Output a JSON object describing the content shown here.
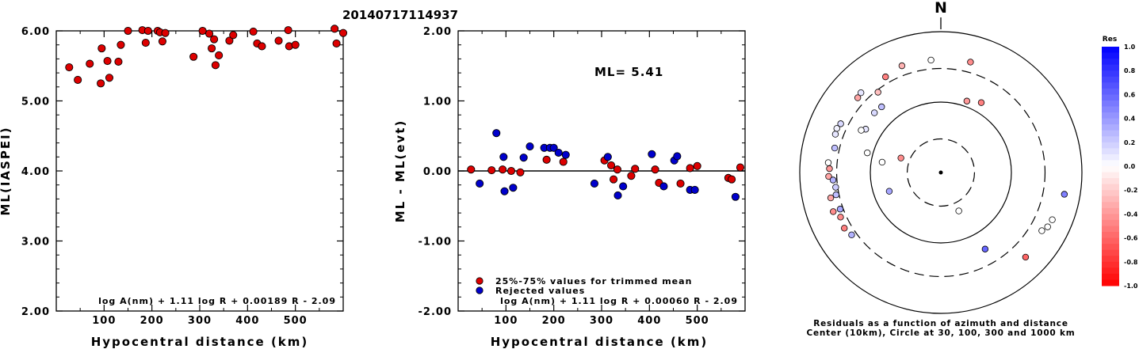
{
  "page_title": "20140717114937",
  "colors": {
    "accepted": "#dd0000",
    "rejected": "#0000cc"
  },
  "chart_data": [
    {
      "type": "scatter",
      "xlabel": "Hypocentral distance (km)",
      "ylabel": "ML(IASPEI)",
      "xlim": [
        0,
        600
      ],
      "ylim": [
        2.0,
        6.0
      ],
      "x_ticks": [
        "100",
        "200",
        "300",
        "400",
        "500"
      ],
      "y_ticks": [
        "2.00",
        "3.00",
        "4.00",
        "5.00",
        "6.00"
      ],
      "formula": "log A(nm) + 1.11 log R + 0.00189 R - 2.09",
      "series": [
        {
          "points": [
            [
              27,
              5.48
            ],
            [
              45,
              5.3
            ],
            [
              70,
              5.53
            ],
            [
              93,
              5.25
            ],
            [
              95,
              5.75
            ],
            [
              107,
              5.57
            ],
            [
              111,
              5.33
            ],
            [
              130,
              5.56
            ],
            [
              135,
              5.8
            ],
            [
              150,
              6.0
            ],
            [
              180,
              6.01
            ],
            [
              187,
              5.83
            ],
            [
              192,
              6.0
            ],
            [
              212,
              6.0
            ],
            [
              217,
              5.98
            ],
            [
              222,
              5.85
            ],
            [
              228,
              5.97
            ],
            [
              287,
              5.63
            ],
            [
              306,
              6.0
            ],
            [
              320,
              5.96
            ],
            [
              325,
              5.75
            ],
            [
              330,
              5.88
            ],
            [
              333,
              5.51
            ],
            [
              340,
              5.65
            ],
            [
              362,
              5.86
            ],
            [
              370,
              5.94
            ],
            [
              412,
              5.99
            ],
            [
              420,
              5.82
            ],
            [
              430,
              5.78
            ],
            [
              465,
              5.86
            ],
            [
              485,
              6.01
            ],
            [
              487,
              5.78
            ],
            [
              500,
              5.8
            ],
            [
              582,
              6.03
            ],
            [
              586,
              5.82
            ],
            [
              600,
              5.97
            ]
          ]
        }
      ]
    },
    {
      "type": "scatter",
      "xlabel": "Hypocentral distance (km)",
      "ylabel": "ML - ML(evt)",
      "xlim": [
        0,
        600
      ],
      "ylim": [
        -2.0,
        2.0
      ],
      "x_ticks": [
        "100",
        "200",
        "300",
        "400",
        "500"
      ],
      "y_ticks": [
        "-2.00",
        "-1.00",
        "0.00",
        "1.00",
        "2.00"
      ],
      "annotation": "ML= 5.41",
      "formula": "log A(nm) + 1.11 log R + 0.00060 R - 2.09",
      "zero_line": 0.0,
      "series": [
        {
          "name": "25%-75% values for trimmed mean",
          "color": "#dd0000",
          "points": [
            [
              27,
              0.02
            ],
            [
              70,
              0.01
            ],
            [
              93,
              0.02
            ],
            [
              111,
              0.0
            ],
            [
              130,
              -0.02
            ],
            [
              185,
              0.16
            ],
            [
              220,
              0.13
            ],
            [
              306,
              0.15
            ],
            [
              320,
              0.08
            ],
            [
              325,
              -0.12
            ],
            [
              333,
              0.02
            ],
            [
              362,
              -0.07
            ],
            [
              370,
              0.03
            ],
            [
              412,
              0.02
            ],
            [
              420,
              -0.17
            ],
            [
              465,
              -0.18
            ],
            [
              485,
              0.04
            ],
            [
              500,
              0.07
            ],
            [
              565,
              -0.1
            ],
            [
              572,
              -0.12
            ],
            [
              590,
              0.05
            ]
          ]
        },
        {
          "name": "Rejected values",
          "color": "#0000cc",
          "points": [
            [
              45,
              -0.18
            ],
            [
              80,
              0.54
            ],
            [
              95,
              0.2
            ],
            [
              97,
              -0.29
            ],
            [
              115,
              -0.24
            ],
            [
              137,
              0.19
            ],
            [
              150,
              0.35
            ],
            [
              180,
              0.33
            ],
            [
              192,
              0.33
            ],
            [
              200,
              0.33
            ],
            [
              210,
              0.26
            ],
            [
              225,
              0.23
            ],
            [
              285,
              -0.18
            ],
            [
              313,
              0.2
            ],
            [
              334,
              -0.35
            ],
            [
              345,
              -0.22
            ],
            [
              405,
              0.24
            ],
            [
              430,
              -0.22
            ],
            [
              452,
              0.15
            ],
            [
              458,
              0.21
            ],
            [
              485,
              -0.27
            ],
            [
              495,
              -0.27
            ],
            [
              580,
              -0.37
            ]
          ]
        }
      ]
    },
    {
      "type": "polar-scatter",
      "north_label": "N",
      "caption_line1": "Residuals as a function of azimuth and distance",
      "caption_line2": "Center (10km), Circle at 30, 100, 300 and 1000 km",
      "rings_km": [
        30,
        100,
        300,
        1000
      ],
      "colorbar_title": "Res",
      "colorbar_ticks": [
        "1.0",
        "0.8",
        "0.6",
        "0.4",
        "0.2",
        "0.0",
        "-0.2",
        "-0.4",
        "-0.6",
        "-0.8",
        "-1.0"
      ],
      "points": [
        {
          "azimuth": 355,
          "distance": 400,
          "res": 0.0
        },
        {
          "azimuth": 15,
          "distance": 420,
          "res": -0.45
        },
        {
          "azimuth": 340,
          "distance": 410,
          "res": -0.3
        },
        {
          "azimuth": 330,
          "distance": 370,
          "res": -0.5
        },
        {
          "azimuth": 315,
          "distance": 400,
          "res": 0.1
        },
        {
          "azimuth": 312,
          "distance": 385,
          "res": -0.35
        },
        {
          "azimuth": 322,
          "distance": 280,
          "res": -0.25
        },
        {
          "azimuth": 318,
          "distance": 180,
          "res": 0.25
        },
        {
          "azimuth": 312,
          "distance": 185,
          "res": 0.15
        },
        {
          "azimuth": 300,
          "distance": 170,
          "res": 0.1
        },
        {
          "azimuth": 298,
          "distance": 190,
          "res": 0.0
        },
        {
          "azimuth": 293,
          "distance": 400,
          "res": 0.05
        },
        {
          "azimuth": 296,
          "distance": 380,
          "res": 0.15
        },
        {
          "azimuth": 290,
          "distance": 390,
          "res": 0.1
        },
        {
          "azimuth": 283,
          "distance": 350,
          "res": 0.25
        },
        {
          "azimuth": 275,
          "distance": 400,
          "res": 0.0
        },
        {
          "azimuth": 272,
          "distance": 380,
          "res": -0.4
        },
        {
          "azimuth": 268,
          "distance": 390,
          "res": -0.35
        },
        {
          "azimuth": 266,
          "distance": 340,
          "res": 0.3
        },
        {
          "azimuth": 262,
          "distance": 320,
          "res": 0.2
        },
        {
          "azimuth": 257,
          "distance": 400,
          "res": -0.35
        },
        {
          "azimuth": 250,
          "distance": 420,
          "res": -0.45
        },
        {
          "azimuth": 246,
          "distance": 360,
          "res": -0.45
        },
        {
          "azimuth": 258,
          "distance": 330,
          "res": 0.25
        },
        {
          "azimuth": 250,
          "distance": 330,
          "res": 0.35
        },
        {
          "azimuth": 240,
          "distance": 380,
          "res": -0.5
        },
        {
          "azimuth": 235,
          "distance": 350,
          "res": 0.3
        },
        {
          "azimuth": 20,
          "distance": 120,
          "res": -0.4
        },
        {
          "azimuth": 30,
          "distance": 140,
          "res": -0.5
        },
        {
          "azimuth": 280,
          "distance": 70,
          "res": 0.0
        },
        {
          "azimuth": 285,
          "distance": 120,
          "res": 0.0
        },
        {
          "azimuth": 250,
          "distance": 60,
          "res": 0.35
        },
        {
          "azimuth": 290,
          "distance": 40,
          "res": -0.45
        },
        {
          "azimuth": 155,
          "distance": 40,
          "res": 0.0
        },
        {
          "azimuth": 150,
          "distance": 180,
          "res": 0.6
        },
        {
          "azimuth": 100,
          "distance": 600,
          "res": 0.5
        },
        {
          "azimuth": 113,
          "distance": 520,
          "res": 0.0
        },
        {
          "azimuth": 117,
          "distance": 500,
          "res": 0.0
        },
        {
          "azimuth": 120,
          "distance": 450,
          "res": 0.0
        },
        {
          "azimuth": 135,
          "distance": 500,
          "res": -0.6
        }
      ]
    }
  ]
}
